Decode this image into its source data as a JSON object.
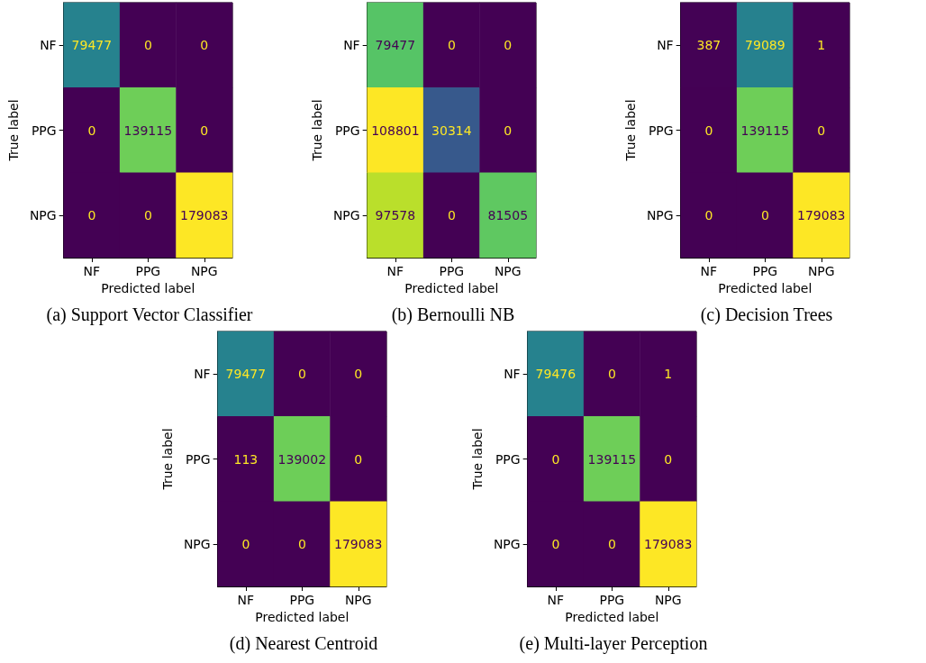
{
  "chart_data": [
    {
      "type": "heatmap",
      "title": "(a) Support Vector Classifier",
      "xlabel": "Predicted label",
      "ylabel": "True label",
      "categories": [
        "NF",
        "PPG",
        "NPG"
      ],
      "y_categories": [
        "NF",
        "PPG",
        "NPG"
      ],
      "data_labels": true,
      "cells": [
        [
          79477,
          0,
          0
        ],
        [
          0,
          139115,
          0
        ],
        [
          0,
          0,
          179083
        ]
      ]
    },
    {
      "type": "heatmap",
      "title": "(b) Bernoulli NB",
      "xlabel": "Predicted label",
      "ylabel": "True label",
      "categories": [
        "NF",
        "PPG",
        "NPG"
      ],
      "y_categories": [
        "NF",
        "PPG",
        "NPG"
      ],
      "data_labels": true,
      "cells": [
        [
          79477,
          0,
          0
        ],
        [
          108801,
          30314,
          0
        ],
        [
          97578,
          0,
          81505
        ]
      ]
    },
    {
      "type": "heatmap",
      "title": "(c) Decision Trees",
      "xlabel": "Predicted label",
      "ylabel": "True label",
      "categories": [
        "NF",
        "PPG",
        "NPG"
      ],
      "y_categories": [
        "NF",
        "PPG",
        "NPG"
      ],
      "data_labels": true,
      "cells": [
        [
          387,
          79089,
          1
        ],
        [
          0,
          139115,
          0
        ],
        [
          0,
          0,
          179083
        ]
      ]
    },
    {
      "type": "heatmap",
      "title": "(d) Nearest Centroid",
      "xlabel": "Predicted label",
      "ylabel": "True label",
      "categories": [
        "NF",
        "PPG",
        "NPG"
      ],
      "y_categories": [
        "NF",
        "PPG",
        "NPG"
      ],
      "data_labels": true,
      "cells": [
        [
          79477,
          0,
          0
        ],
        [
          113,
          139002,
          0
        ],
        [
          0,
          0,
          179083
        ]
      ]
    },
    {
      "type": "heatmap",
      "title": "(e) Multi-layer Perception",
      "xlabel": "Predicted label",
      "ylabel": "True label",
      "categories": [
        "NF",
        "PPG",
        "NPG"
      ],
      "y_categories": [
        "NF",
        "PPG",
        "NPG"
      ],
      "data_labels": true,
      "cells": [
        [
          79476,
          0,
          1
        ],
        [
          0,
          139115,
          0
        ],
        [
          0,
          0,
          179083
        ]
      ]
    }
  ]
}
